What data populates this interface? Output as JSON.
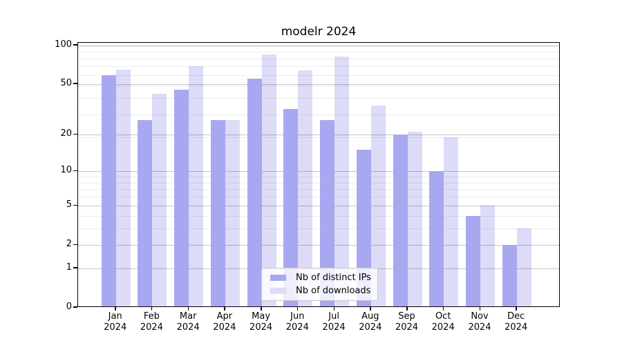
{
  "title": "modelr 2024",
  "chart_data": {
    "type": "bar",
    "title": "modelr 2024",
    "categories": [
      "Jan 2024",
      "Feb 2024",
      "Mar 2024",
      "Apr 2024",
      "May 2024",
      "Jun 2024",
      "Jul 2024",
      "Aug 2024",
      "Sep 2024",
      "Oct 2024",
      "Nov 2024",
      "Dec 2024"
    ],
    "series": [
      {
        "name": "Nb of distinct IPs",
        "color": "#a8a8f0",
        "values": [
          59,
          26,
          45,
          26,
          55,
          32,
          26,
          15,
          20,
          10,
          4,
          2
        ]
      },
      {
        "name": "Nb of downloads",
        "color": "#dcdcf8",
        "values": [
          65,
          42,
          69,
          26,
          85,
          64,
          82,
          34,
          21,
          19,
          5,
          3
        ]
      }
    ],
    "xlabel": "",
    "ylabel": "",
    "yscale": "log(1+x)",
    "ylim": [
      0,
      104
    ],
    "yticks": [
      0,
      1,
      2,
      5,
      10,
      20,
      50,
      100
    ],
    "ytick_labels": [
      "0",
      "1",
      "2",
      "5",
      "10",
      "20",
      "50",
      "100"
    ],
    "minor_grid_values": [
      1,
      2,
      3,
      4,
      5,
      6,
      7,
      8,
      9,
      19,
      29,
      39,
      49,
      59,
      69,
      79,
      89,
      99
    ],
    "grid": "on",
    "legend_position": "lower center inside",
    "colors": {
      "axis": "#000000",
      "major_grid": "#c6c6c6",
      "minor_grid": "#ededed",
      "background": "#ffffff",
      "text": "#000000"
    }
  }
}
